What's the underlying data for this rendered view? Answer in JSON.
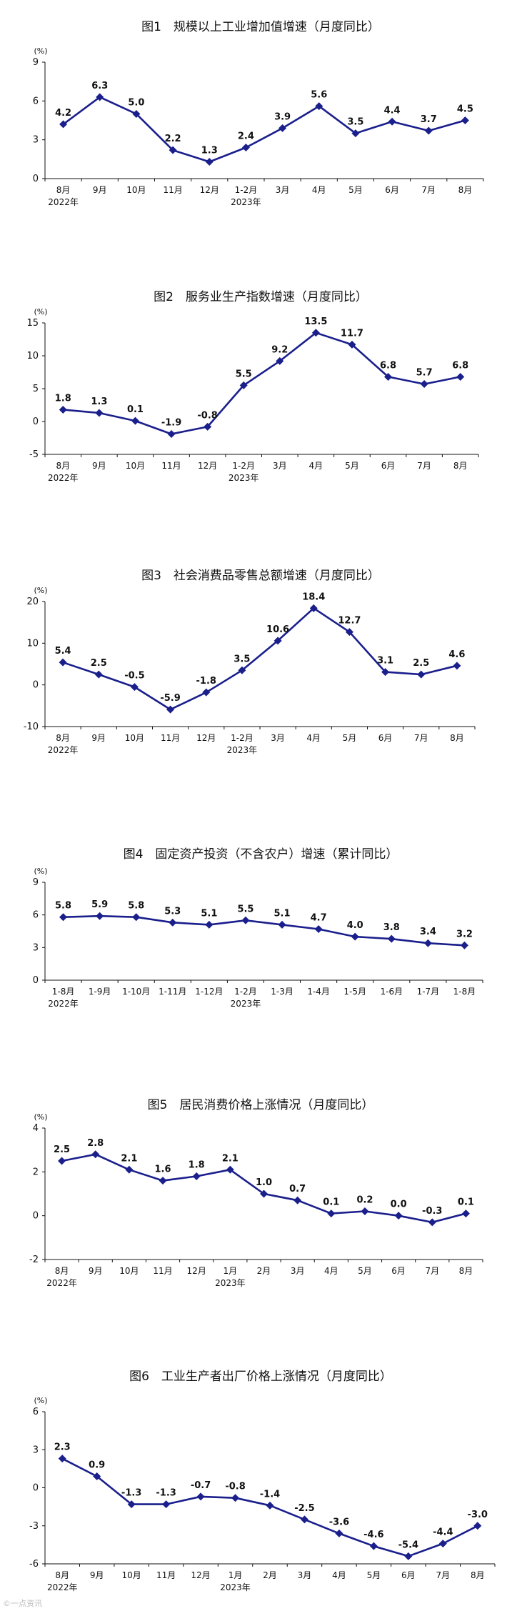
{
  "chart_data": [
    {
      "type": "line",
      "title": "图1　规模以上工业增加值增速（月度同比）",
      "unit": "(%)",
      "ylim": [
        0,
        9
      ],
      "yticks": [
        0,
        3,
        6,
        9
      ],
      "categories": [
        "8月",
        "9月",
        "10月",
        "11月",
        "12月",
        "1-2月",
        "3月",
        "4月",
        "5月",
        "6月",
        "7月",
        "8月"
      ],
      "years": [
        {
          "index": 0,
          "label": "2022年"
        },
        {
          "index": 5,
          "label": "2023年"
        }
      ],
      "values": [
        4.2,
        6.3,
        5.0,
        2.2,
        1.3,
        2.4,
        3.9,
        5.6,
        3.5,
        4.4,
        3.7,
        4.5
      ],
      "labels": [
        "4.2",
        "6.3",
        "5.0",
        "2.2",
        "1.3",
        "2.4",
        "3.9",
        "5.6",
        "3.5",
        "4.4",
        "3.7",
        "4.5"
      ],
      "color": "#1a1f8c"
    },
    {
      "type": "line",
      "title": "图2　服务业生产指数增速（月度同比）",
      "unit": "(%)",
      "ylim": [
        -5,
        15
      ],
      "yticks": [
        -5,
        0,
        5,
        10,
        15
      ],
      "categories": [
        "8月",
        "9月",
        "10月",
        "11月",
        "12月",
        "1-2月",
        "3月",
        "4月",
        "5月",
        "6月",
        "7月",
        "8月"
      ],
      "years": [
        {
          "index": 0,
          "label": "2022年"
        },
        {
          "index": 5,
          "label": "2023年"
        }
      ],
      "values": [
        1.8,
        1.3,
        0.1,
        -1.9,
        -0.8,
        5.5,
        9.2,
        13.5,
        11.7,
        6.8,
        5.7,
        6.8
      ],
      "labels": [
        "1.8",
        "1.3",
        "0.1",
        "-1.9",
        "-0.8",
        "5.5",
        "9.2",
        "13.5",
        "11.7",
        "6.8",
        "5.7",
        "6.8"
      ],
      "color": "#1a1f8c"
    },
    {
      "type": "line",
      "title": "图3　社会消费品零售总额增速（月度同比）",
      "unit": "(%)",
      "ylim": [
        -10,
        20
      ],
      "yticks": [
        -10,
        0,
        10,
        20
      ],
      "categories": [
        "8月",
        "9月",
        "10月",
        "11月",
        "12月",
        "1-2月",
        "3月",
        "4月",
        "5月",
        "6月",
        "7月",
        "8月"
      ],
      "years": [
        {
          "index": 0,
          "label": "2022年"
        },
        {
          "index": 5,
          "label": "2023年"
        }
      ],
      "values": [
        5.4,
        2.5,
        -0.5,
        -5.9,
        -1.8,
        3.5,
        10.6,
        18.4,
        12.7,
        3.1,
        2.5,
        4.6
      ],
      "labels": [
        "5.4",
        "2.5",
        "-0.5",
        "-5.9",
        "-1.8",
        "3.5",
        "10.6",
        "18.4",
        "12.7",
        "3.1",
        "2.5",
        "4.6"
      ],
      "color": "#1a1f8c"
    },
    {
      "type": "line",
      "title": "图4　固定资产投资（不含农户）增速（累计同比）",
      "unit": "(%)",
      "ylim": [
        0,
        9
      ],
      "yticks": [
        0,
        3,
        6,
        9
      ],
      "categories": [
        "1-8月",
        "1-9月",
        "1-10月",
        "1-11月",
        "1-12月",
        "1-2月",
        "1-3月",
        "1-4月",
        "1-5月",
        "1-6月",
        "1-7月",
        "1-8月"
      ],
      "years": [
        {
          "index": 0,
          "label": "2022年"
        },
        {
          "index": 5,
          "label": "2023年"
        }
      ],
      "values": [
        5.8,
        5.9,
        5.8,
        5.3,
        5.1,
        5.5,
        5.1,
        4.7,
        4.0,
        3.8,
        3.4,
        3.2
      ],
      "labels": [
        "5.8",
        "5.9",
        "5.8",
        "5.3",
        "5.1",
        "5.5",
        "5.1",
        "4.7",
        "4.0",
        "3.8",
        "3.4",
        "3.2"
      ],
      "color": "#1a1f8c"
    },
    {
      "type": "line",
      "title": "图5　居民消费价格上涨情况（月度同比）",
      "unit": "(%)",
      "ylim": [
        -2,
        4
      ],
      "yticks": [
        -2,
        0,
        2,
        4
      ],
      "categories": [
        "8月",
        "9月",
        "10月",
        "11月",
        "12月",
        "1月",
        "2月",
        "3月",
        "4月",
        "5月",
        "6月",
        "7月",
        "8月"
      ],
      "years": [
        {
          "index": 0,
          "label": "2022年"
        },
        {
          "index": 5,
          "label": "2023年"
        }
      ],
      "values": [
        2.5,
        2.8,
        2.1,
        1.6,
        1.8,
        2.1,
        1.0,
        0.7,
        0.1,
        0.2,
        0.0,
        -0.3,
        0.1
      ],
      "labels": [
        "2.5",
        "2.8",
        "2.1",
        "1.6",
        "1.8",
        "2.1",
        "1.0",
        "0.7",
        "0.1",
        "0.2",
        "0.0",
        "-0.3",
        "0.1"
      ],
      "color": "#1a1f8c"
    },
    {
      "type": "line",
      "title": "图6　工业生产者出厂价格上涨情况（月度同比）",
      "unit": "(%)",
      "ylim": [
        -6,
        6
      ],
      "yticks": [
        -6,
        -3,
        0,
        3,
        6
      ],
      "categories": [
        "8月",
        "9月",
        "10月",
        "11月",
        "12月",
        "1月",
        "2月",
        "3月",
        "4月",
        "5月",
        "6月",
        "7月",
        "8月"
      ],
      "years": [
        {
          "index": 0,
          "label": "2022年"
        },
        {
          "index": 5,
          "label": "2023年"
        }
      ],
      "values": [
        2.3,
        0.9,
        -1.3,
        -1.3,
        -0.7,
        -0.8,
        -1.4,
        -2.5,
        -3.6,
        -4.6,
        -5.4,
        -4.4,
        -3.0
      ],
      "labels": [
        "2.3",
        "0.9",
        "-1.3",
        "-1.3",
        "-0.7",
        "-0.8",
        "-1.4",
        "-2.5",
        "-3.6",
        "-4.6",
        "-5.4",
        "-4.4",
        "-3.0"
      ],
      "color": "#1a1f8c"
    }
  ],
  "watermark": "©一点资讯"
}
